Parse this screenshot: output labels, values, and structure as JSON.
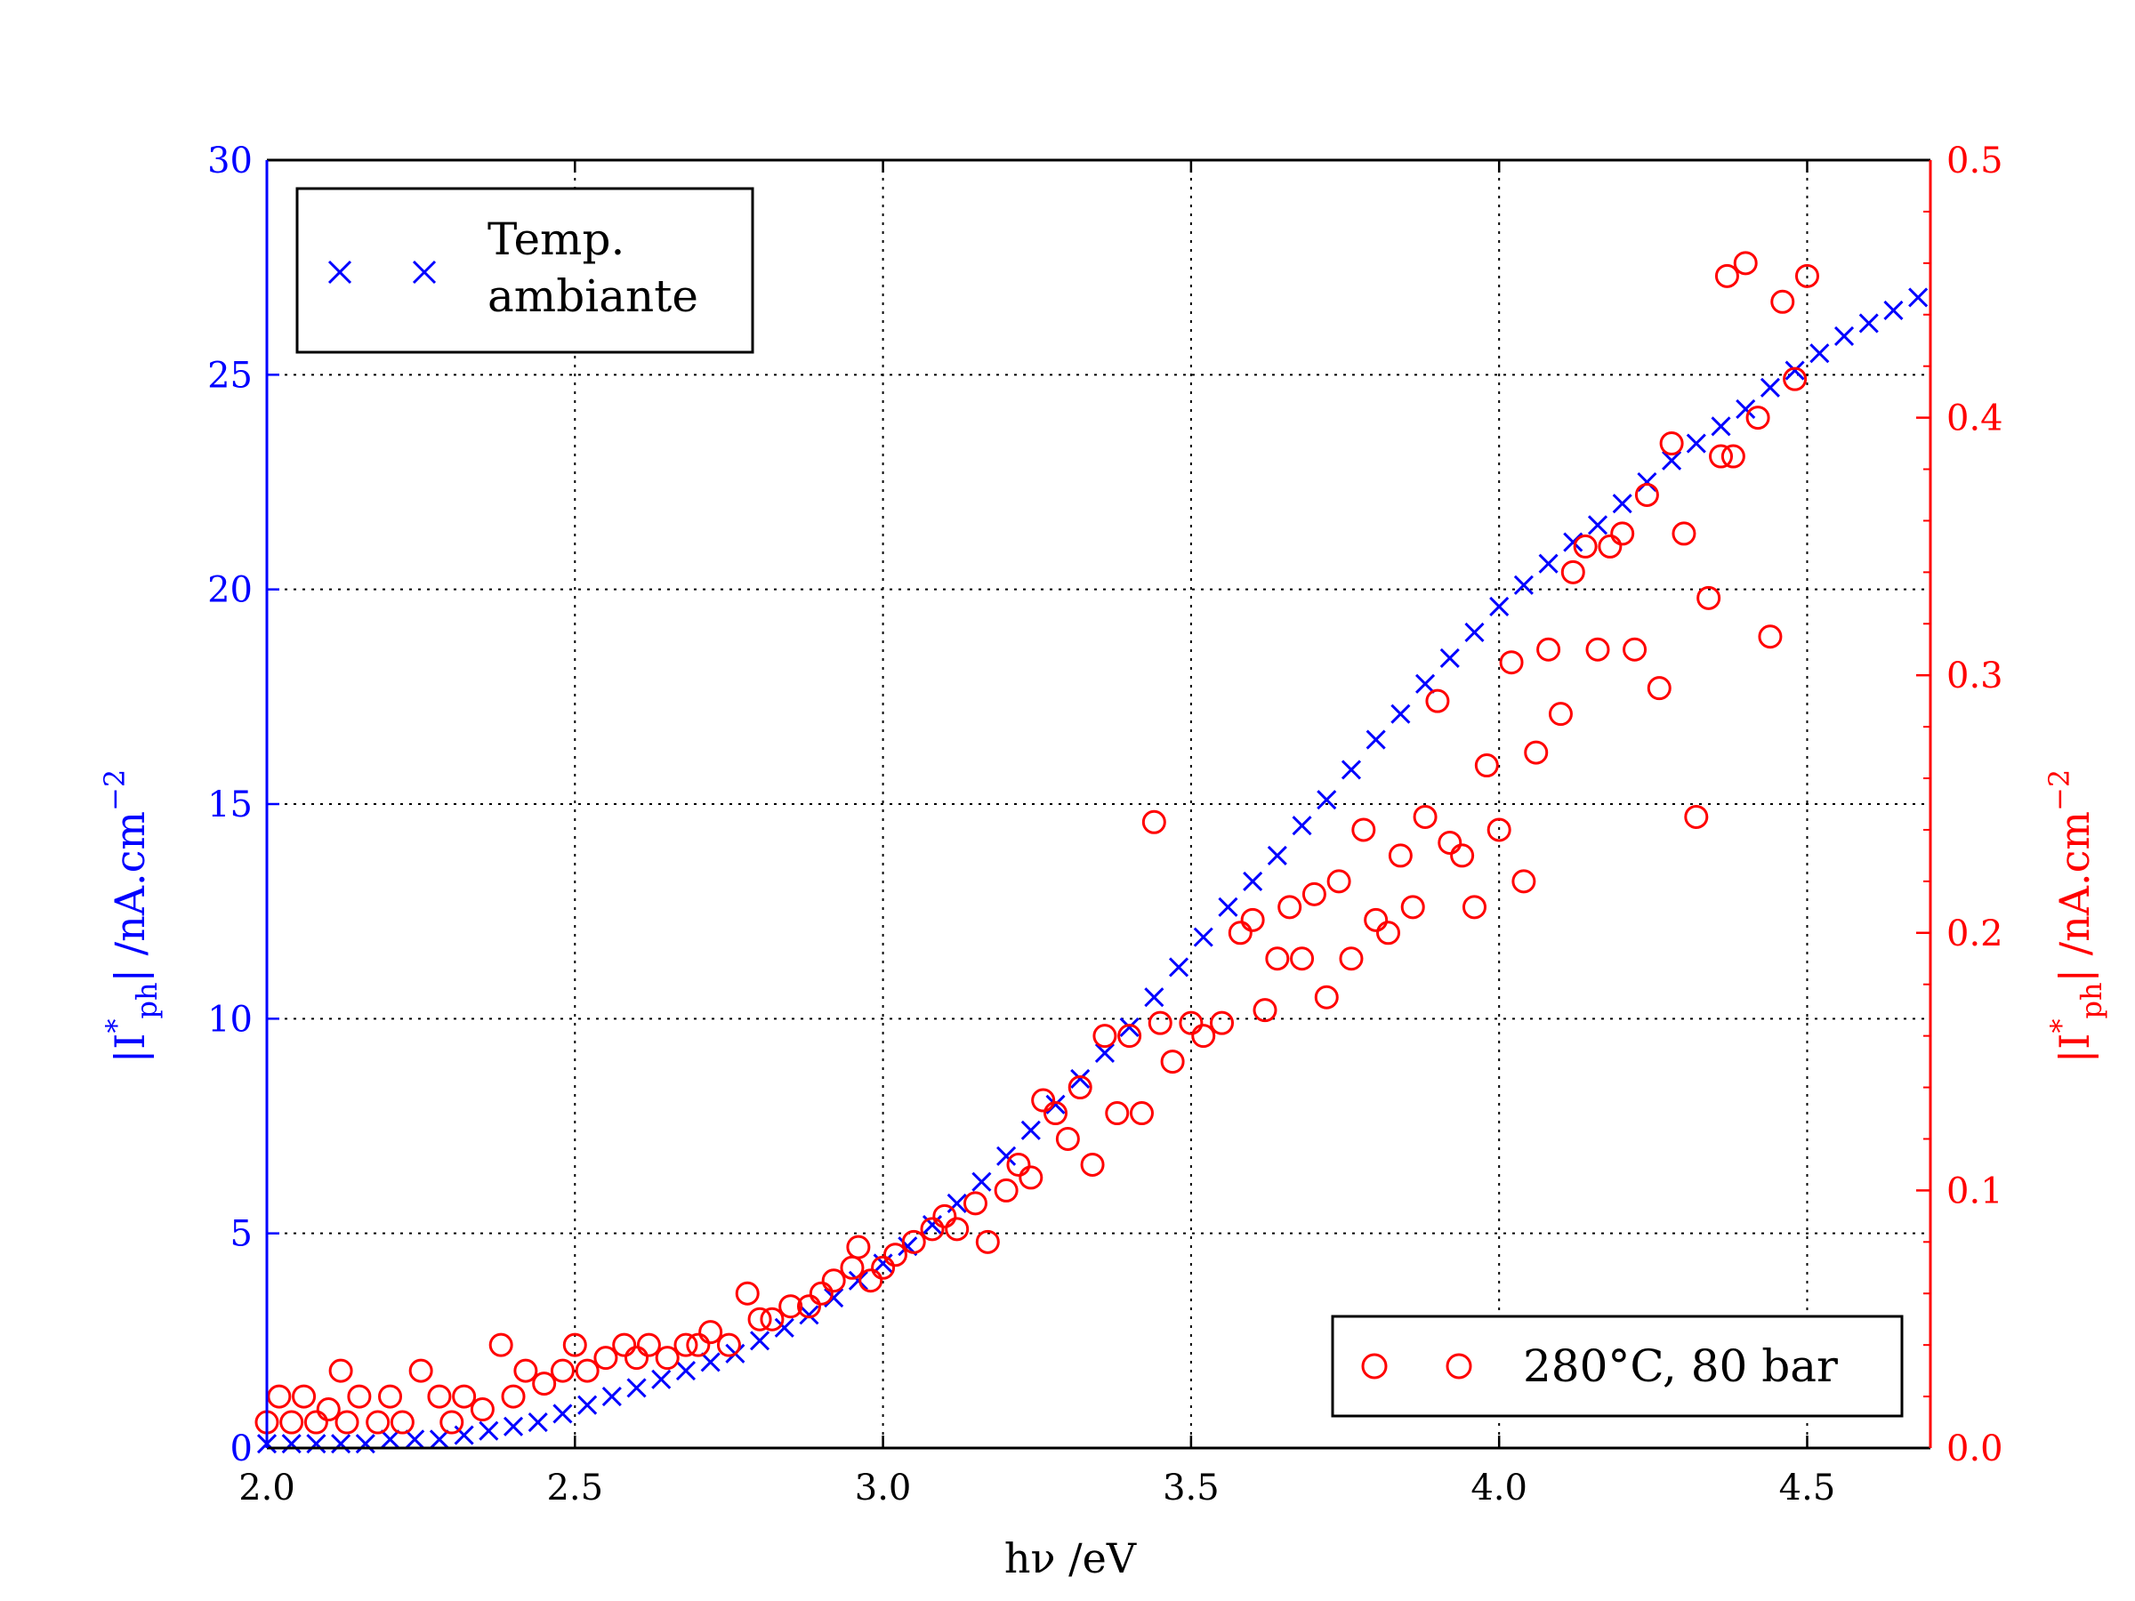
{
  "chart_data": {
    "type": "scatter",
    "title": "",
    "xlabel": "hν /eV",
    "ylabel_left": {
      "base": "|I",
      "sup": "*",
      "sub": "ph",
      "rest": "| /nA.cm",
      "exp": "−2"
    },
    "ylabel_right": {
      "base": "|I",
      "sup": "*",
      "sub": "ph",
      "rest": "| /nA.cm",
      "exp": "−2"
    },
    "xlim": [
      2.0,
      4.7
    ],
    "ylim_left": [
      0,
      30
    ],
    "ylim_right": [
      0.0,
      0.5
    ],
    "x_ticks": [
      "2.0",
      "2.5",
      "3.0",
      "3.5",
      "4.0",
      "4.5"
    ],
    "y_left_ticks": [
      "0",
      "5",
      "10",
      "15",
      "20",
      "25",
      "30"
    ],
    "y_right_ticks": [
      "0.0",
      "0.1",
      "0.2",
      "0.3",
      "0.4",
      "0.5"
    ],
    "grid": true,
    "colors": {
      "left_series": "#0000ff",
      "right_series": "#ff0000",
      "axes": "#000000"
    },
    "legend_left": {
      "placement": "top-left",
      "text_line1": "Temp.",
      "text_line2": "ambiante"
    },
    "legend_right": {
      "placement": "bottom-right",
      "text": "280°C, 80 bar"
    },
    "series": [
      {
        "name": "Temp. ambiante",
        "axis": "left",
        "marker": "x",
        "x": [
          2.0,
          2.04,
          2.08,
          2.12,
          2.16,
          2.2,
          2.24,
          2.28,
          2.32,
          2.36,
          2.4,
          2.44,
          2.48,
          2.52,
          2.56,
          2.6,
          2.64,
          2.68,
          2.72,
          2.76,
          2.8,
          2.84,
          2.88,
          2.92,
          2.96,
          3.0,
          3.04,
          3.08,
          3.12,
          3.16,
          3.2,
          3.24,
          3.28,
          3.32,
          3.36,
          3.4,
          3.44,
          3.48,
          3.52,
          3.56,
          3.6,
          3.64,
          3.68,
          3.72,
          3.76,
          3.8,
          3.84,
          3.88,
          3.92,
          3.96,
          4.0,
          4.04,
          4.08,
          4.12,
          4.16,
          4.2,
          4.24,
          4.28,
          4.32,
          4.36,
          4.4,
          4.44,
          4.48,
          4.52,
          4.56,
          4.6,
          4.64,
          4.68
        ],
        "y": [
          0.1,
          0.1,
          0.1,
          0.1,
          0.1,
          0.2,
          0.2,
          0.2,
          0.3,
          0.4,
          0.5,
          0.6,
          0.8,
          1.0,
          1.2,
          1.4,
          1.6,
          1.8,
          2.0,
          2.2,
          2.5,
          2.8,
          3.1,
          3.5,
          3.9,
          4.3,
          4.7,
          5.2,
          5.7,
          6.2,
          6.8,
          7.4,
          8.0,
          8.6,
          9.2,
          9.8,
          10.5,
          11.2,
          11.9,
          12.6,
          13.2,
          13.8,
          14.5,
          15.1,
          15.8,
          16.5,
          17.1,
          17.8,
          18.4,
          19.0,
          19.6,
          20.1,
          20.6,
          21.1,
          21.5,
          22.0,
          22.5,
          23.0,
          23.4,
          23.8,
          24.2,
          24.7,
          25.1,
          25.5,
          25.9,
          26.2,
          26.5,
          26.8
        ]
      },
      {
        "name": "280°C, 80 bar",
        "axis": "right",
        "marker": "o",
        "x": [
          2.0,
          2.02,
          2.04,
          2.06,
          2.08,
          2.1,
          2.12,
          2.13,
          2.15,
          2.18,
          2.2,
          2.22,
          2.25,
          2.28,
          2.3,
          2.32,
          2.35,
          2.38,
          2.4,
          2.42,
          2.45,
          2.48,
          2.5,
          2.52,
          2.55,
          2.58,
          2.6,
          2.62,
          2.65,
          2.68,
          2.7,
          2.72,
          2.75,
          2.78,
          2.8,
          2.82,
          2.85,
          2.88,
          2.9,
          2.92,
          2.95,
          2.96,
          2.98,
          3.0,
          3.02,
          3.05,
          3.08,
          3.1,
          3.12,
          3.15,
          3.17,
          3.2,
          3.22,
          3.24,
          3.26,
          3.28,
          3.3,
          3.32,
          3.34,
          3.36,
          3.38,
          3.4,
          3.42,
          3.44,
          3.45,
          3.47,
          3.5,
          3.52,
          3.55,
          3.58,
          3.6,
          3.62,
          3.64,
          3.66,
          3.68,
          3.7,
          3.72,
          3.74,
          3.76,
          3.78,
          3.8,
          3.82,
          3.84,
          3.86,
          3.88,
          3.9,
          3.92,
          3.94,
          3.96,
          3.98,
          4.0,
          4.02,
          4.04,
          4.06,
          4.08,
          4.1,
          4.12,
          4.14,
          4.16,
          4.18,
          4.2,
          4.22,
          4.24,
          4.26,
          4.28,
          4.3,
          4.32,
          4.34,
          4.36,
          4.37,
          4.38,
          4.4,
          4.42,
          4.44,
          4.46,
          4.48,
          4.5
        ],
        "y": [
          0.01,
          0.02,
          0.01,
          0.02,
          0.01,
          0.015,
          0.03,
          0.01,
          0.02,
          0.01,
          0.02,
          0.01,
          0.03,
          0.02,
          0.01,
          0.02,
          0.015,
          0.04,
          0.02,
          0.03,
          0.025,
          0.03,
          0.04,
          0.03,
          0.035,
          0.04,
          0.035,
          0.04,
          0.035,
          0.04,
          0.04,
          0.045,
          0.04,
          0.06,
          0.05,
          0.05,
          0.055,
          0.055,
          0.06,
          0.065,
          0.07,
          0.078,
          0.065,
          0.07,
          0.075,
          0.08,
          0.085,
          0.09,
          0.085,
          0.095,
          0.08,
          0.1,
          0.11,
          0.105,
          0.135,
          0.13,
          0.12,
          0.14,
          0.11,
          0.16,
          0.13,
          0.16,
          0.13,
          0.243,
          0.165,
          0.15,
          0.165,
          0.16,
          0.165,
          0.2,
          0.205,
          0.17,
          0.19,
          0.21,
          0.19,
          0.215,
          0.175,
          0.22,
          0.19,
          0.24,
          0.205,
          0.2,
          0.23,
          0.21,
          0.245,
          0.29,
          0.235,
          0.23,
          0.21,
          0.265,
          0.24,
          0.305,
          0.22,
          0.27,
          0.31,
          0.285,
          0.34,
          0.35,
          0.31,
          0.35,
          0.355,
          0.31,
          0.37,
          0.295,
          0.39,
          0.355,
          0.245,
          0.33,
          0.385,
          0.455,
          0.385,
          0.46,
          0.4,
          0.315,
          0.445,
          0.415,
          0.455
        ]
      }
    ]
  }
}
